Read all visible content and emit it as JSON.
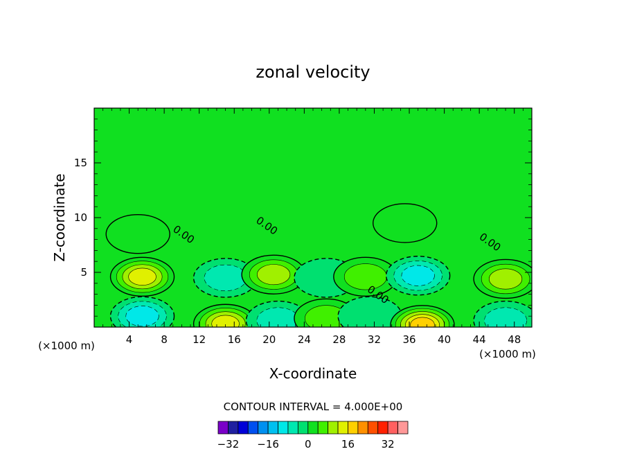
{
  "chart_data": {
    "type": "contour",
    "title": "zonal velocity",
    "xlabel": "X-coordinate",
    "ylabel": "Z-coordinate",
    "x_unit_label": "(×1000 m)",
    "y_unit_label": "(×1000 m)",
    "xlim": [
      0,
      50
    ],
    "ylim": [
      0,
      20
    ],
    "x_ticks": [
      4,
      8,
      12,
      16,
      20,
      24,
      28,
      32,
      36,
      40,
      44,
      48
    ],
    "y_ticks": [
      5,
      10,
      15
    ],
    "background_value": 0,
    "contour_interval_text": "CONTOUR INTERVAL = 4.000E+00",
    "zero_labels": [
      {
        "text": "0.00",
        "x": 10,
        "y": 8.2
      },
      {
        "text": "0.00",
        "x": 19.5,
        "y": 9.0
      },
      {
        "text": "0.00",
        "x": 32.2,
        "y": 2.7
      },
      {
        "text": "0.00",
        "x": 45,
        "y": 7.5
      }
    ],
    "features": [
      {
        "x": 5.5,
        "y": 4.6,
        "value": 14
      },
      {
        "x": 5.5,
        "y": 1.0,
        "value": -10
      },
      {
        "x": 15,
        "y": 0.3,
        "value": 16
      },
      {
        "x": 15,
        "y": 4.5,
        "value": -6
      },
      {
        "x": 20.5,
        "y": 4.8,
        "value": 12
      },
      {
        "x": 21,
        "y": 0.6,
        "value": -6
      },
      {
        "x": 26.5,
        "y": 4.5,
        "value": -4
      },
      {
        "x": 26.5,
        "y": 0.8,
        "value": 6
      },
      {
        "x": 31,
        "y": 4.6,
        "value": 8
      },
      {
        "x": 31.5,
        "y": 1.0,
        "value": -4
      },
      {
        "x": 37,
        "y": 4.7,
        "value": -10
      },
      {
        "x": 37.5,
        "y": 0.2,
        "value": 18
      },
      {
        "x": 35.5,
        "y": 9.5,
        "value": 3
      },
      {
        "x": 47,
        "y": 4.4,
        "value": 12
      },
      {
        "x": 47,
        "y": 0.6,
        "value": -6
      },
      {
        "x": 5,
        "y": 8.5,
        "value": 2
      }
    ],
    "colorbar": {
      "levels": [
        -36,
        -32,
        -28,
        -24,
        -20,
        -16,
        -12,
        -8,
        -4,
        0,
        4,
        8,
        12,
        16,
        20,
        24,
        28,
        32,
        36
      ],
      "colors": [
        "#7a00c8",
        "#2020a0",
        "#0000d8",
        "#0050f0",
        "#0090f0",
        "#00c0f0",
        "#00e8e8",
        "#00e8b0",
        "#00e070",
        "#10e020",
        "#40f000",
        "#a0f000",
        "#e0f000",
        "#ffd000",
        "#ff9000",
        "#ff5000",
        "#ff2000",
        "#ff6060",
        "#ff9898"
      ],
      "tick_labels": [
        "−32",
        "−16",
        "0",
        "16",
        "32"
      ],
      "tick_values": [
        -32,
        -16,
        0,
        16,
        32
      ]
    }
  }
}
